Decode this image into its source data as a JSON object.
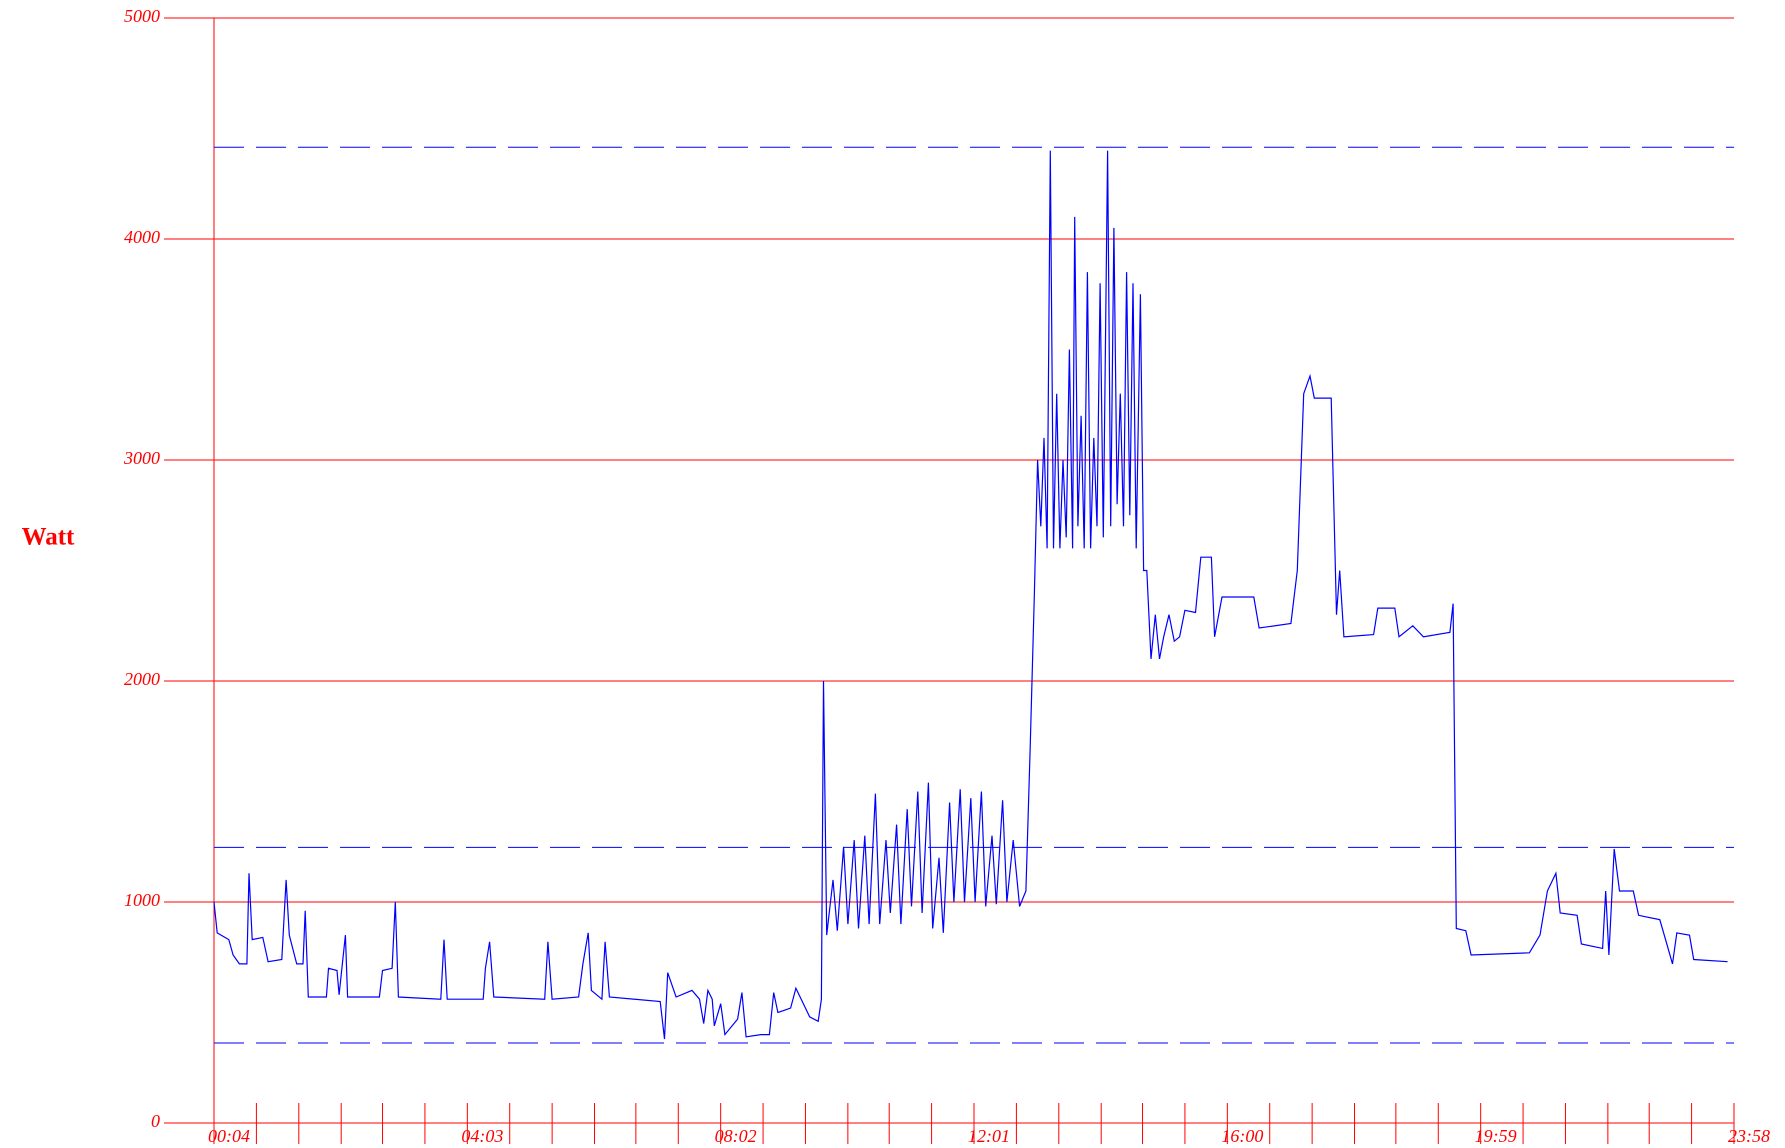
{
  "chart_data": {
    "type": "line",
    "ylabel": "Watt",
    "x": [
      4,
      7,
      18,
      22,
      28,
      35,
      37,
      40,
      50,
      55,
      68,
      72,
      75,
      82,
      88,
      90,
      93,
      110,
      112,
      120,
      122,
      128,
      130,
      160,
      163,
      172,
      175,
      178,
      218,
      221,
      224,
      258,
      260,
      264,
      268,
      316,
      319,
      323,
      348,
      352,
      357,
      360,
      370,
      373,
      377,
      425,
      429,
      432,
      440,
      455,
      462,
      466,
      470,
      474,
      476,
      482,
      486,
      498,
      502,
      506,
      520,
      528,
      532,
      536,
      542,
      548,
      553,
      558,
      566,
      574,
      577,
      579,
      582,
      588,
      592,
      598,
      602,
      608,
      612,
      618,
      622,
      628,
      632,
      638,
      642,
      648,
      652,
      658,
      662,
      668,
      672,
      678,
      682,
      688,
      692,
      698,
      702,
      708,
      712,
      718,
      722,
      728,
      732,
      738,
      742,
      748,
      752,
      758,
      764,
      770,
      774,
      778,
      781,
      784,
      787,
      790,
      793,
      796,
      799,
      802,
      805,
      808,
      811,
      814,
      816,
      819,
      822,
      825,
      828,
      831,
      834,
      837,
      840,
      843,
      847,
      850,
      853,
      856,
      859,
      862,
      865,
      868,
      871,
      874,
      878,
      881,
      884,
      888,
      892,
      896,
      900,
      905,
      910,
      915,
      920,
      930,
      935,
      945,
      948,
      955,
      985,
      990,
      1020,
      1026,
      1032,
      1038,
      1042,
      1058,
      1063,
      1066,
      1070,
      1098,
      1102,
      1118,
      1122,
      1135,
      1145,
      1170,
      1173,
      1176,
      1185,
      1190,
      1245,
      1255,
      1262,
      1270,
      1274,
      1290,
      1294,
      1314,
      1317,
      1320,
      1325,
      1330,
      1343,
      1348,
      1368,
      1374,
      1380,
      1384,
      1396,
      1400,
      1432
    ],
    "values": [
      1000,
      860,
      830,
      760,
      720,
      720,
      1130,
      830,
      840,
      730,
      740,
      1100,
      850,
      720,
      720,
      960,
      570,
      570,
      700,
      690,
      580,
      850,
      570,
      570,
      690,
      700,
      1000,
      570,
      560,
      830,
      560,
      560,
      700,
      820,
      570,
      560,
      820,
      560,
      570,
      720,
      860,
      600,
      560,
      820,
      570,
      550,
      380,
      680,
      570,
      600,
      560,
      450,
      600,
      560,
      440,
      540,
      400,
      470,
      590,
      390,
      400,
      400,
      590,
      500,
      510,
      520,
      610,
      560,
      480,
      460,
      560,
      2000,
      850,
      1100,
      870,
      1250,
      900,
      1280,
      880,
      1300,
      900,
      1490,
      900,
      1280,
      950,
      1350,
      900,
      1420,
      980,
      1500,
      950,
      1540,
      880,
      1200,
      860,
      1450,
      1000,
      1510,
      1000,
      1470,
      1000,
      1500,
      980,
      1300,
      990,
      1460,
      1000,
      1280,
      980,
      1050,
      1700,
      2400,
      3000,
      2700,
      3100,
      2600,
      4400,
      2600,
      3300,
      2600,
      3000,
      2650,
      3500,
      2600,
      4100,
      2700,
      3200,
      2600,
      3850,
      2600,
      3100,
      2700,
      3800,
      2650,
      4400,
      2700,
      4050,
      2800,
      3300,
      2700,
      3850,
      2750,
      3800,
      2600,
      3750,
      2500,
      2500,
      2100,
      2300,
      2100,
      2200,
      2300,
      2180,
      2200,
      2320,
      2310,
      2560,
      2560,
      2200,
      2380,
      2380,
      2240,
      2260,
      2500,
      3300,
      3380,
      3280,
      3280,
      2300,
      2500,
      2200,
      2210,
      2330,
      2330,
      2200,
      2250,
      2200,
      2220,
      2350,
      880,
      870,
      760,
      770,
      850,
      1050,
      1130,
      950,
      940,
      810,
      790,
      1050,
      760,
      1240,
      1050,
      1050,
      940,
      920,
      820,
      720,
      860,
      850,
      740,
      730
    ],
    "color": "#0000ff",
    "hlines": [
      4415,
      1247,
      362
    ],
    "hline_color": "#0000ff",
    "xlim": [
      4,
      1438
    ],
    "xticks": [
      {
        "value": 4,
        "label": "00:04"
      },
      {
        "value": 243,
        "label": "04:03"
      },
      {
        "value": 482,
        "label": "08:02"
      },
      {
        "value": 721,
        "label": "12:01"
      },
      {
        "value": 960,
        "label": "16:00"
      },
      {
        "value": 1199,
        "label": "19:59"
      },
      {
        "value": 1438,
        "label": "23:58"
      }
    ],
    "xminorticks": [
      44,
      84,
      124,
      163,
      203,
      283,
      323,
      363,
      402,
      442,
      522,
      562,
      602,
      641,
      681,
      761,
      801,
      841,
      880,
      920,
      1000,
      1040,
      1080,
      1119,
      1159,
      1239,
      1279,
      1319,
      1358,
      1398
    ],
    "ylim": [
      0,
      5000
    ],
    "yticks": [
      0,
      1000,
      2000,
      3000,
      4000,
      5000
    ],
    "grid": true,
    "axis_color": "#ff0000"
  }
}
